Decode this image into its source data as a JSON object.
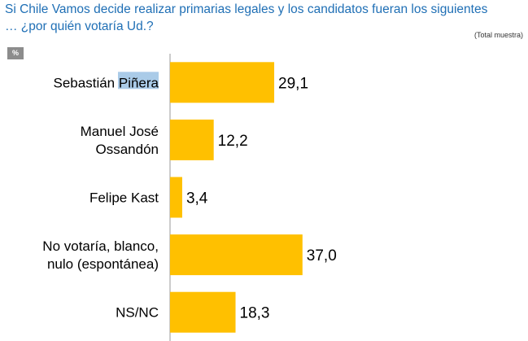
{
  "header": {
    "title": "Si Chile Vamos decide realizar primarias legales y los candidatos fueran los siguientes … ¿por quién votaría Ud.?",
    "subtitle": "(Total muestra)",
    "unit_badge": "%"
  },
  "chart_data": {
    "type": "bar",
    "orientation": "horizontal",
    "title": "Si Chile Vamos decide realizar primarias legales y los candidatos fueran los siguientes … ¿por quién votaría Ud.?",
    "subtitle": "(Total muestra)",
    "ylabel": "%",
    "categories": [
      [
        "Sebastián Piñera"
      ],
      [
        "Manuel José",
        "Ossandón"
      ],
      [
        "Felipe Kast"
      ],
      [
        "No votaría, blanco,",
        "nulo (espontánea)"
      ],
      [
        "NS/NC"
      ]
    ],
    "values": [
      29.1,
      12.2,
      3.4,
      37.0,
      18.3
    ],
    "value_labels": [
      "29,1",
      "12,2",
      "3,4",
      "37,0",
      "18,3"
    ],
    "xlim": [
      0,
      100
    ],
    "bar_color": "#ffc000",
    "grid": false
  }
}
